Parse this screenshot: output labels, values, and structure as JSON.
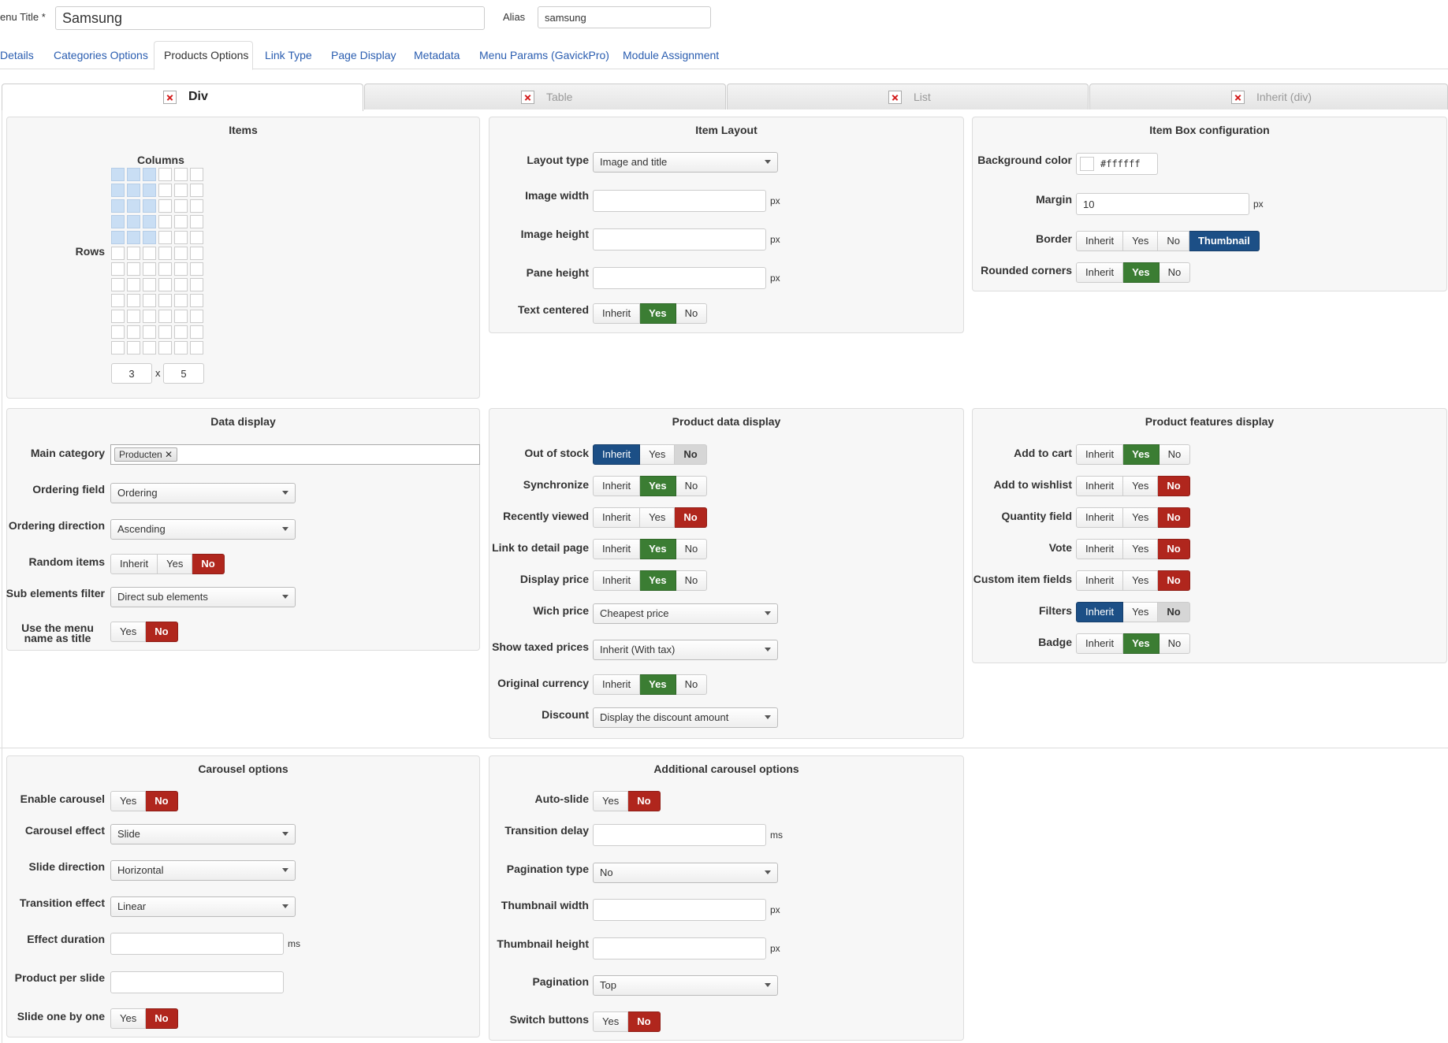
{
  "header": {
    "menu_title_label": "enu Title *",
    "menu_title_value": "Samsung",
    "alias_label": "Alias",
    "alias_value": "samsung"
  },
  "tabs": [
    "Details",
    "Categories Options",
    "Products Options",
    "Link Type",
    "Page Display",
    "Metadata",
    "Menu Params (GavickPro)",
    "Module Assignment"
  ],
  "subtabs": [
    "Div",
    "Table",
    "List",
    "Inherit (div)"
  ],
  "items": {
    "title": "Items",
    "columns_label": "Columns",
    "rows_label": "Rows",
    "columns": 3,
    "rows": 5,
    "columns_value": "3",
    "rows_value": "5",
    "x": "x"
  },
  "item_layout": {
    "title": "Item Layout",
    "layout_type_label": "Layout type",
    "layout_type_value": "Image and title",
    "image_width_label": "Image width",
    "image_height_label": "Image height",
    "pane_height_label": "Pane height",
    "text_centered_label": "Text centered",
    "px": "px"
  },
  "item_box": {
    "title": "Item Box configuration",
    "bg_color_label": "Background color",
    "bg_color_value": "#ffffff",
    "margin_label": "Margin",
    "margin_value": "10",
    "border_label": "Border",
    "rounded_label": "Rounded corners",
    "px": "px"
  },
  "data_display": {
    "title": "Data display",
    "main_category_label": "Main category",
    "main_category_chip": "Producten",
    "ordering_field_label": "Ordering field",
    "ordering_field_value": "Ordering",
    "ordering_direction_label": "Ordering direction",
    "ordering_direction_value": "Ascending",
    "random_items_label": "Random items",
    "sub_elements_label": "Sub elements filter",
    "sub_elements_value": "Direct sub elements",
    "menu_name_label": "Use the menu name as title"
  },
  "product_data": {
    "title": "Product data display",
    "out_of_stock_label": "Out of stock",
    "synchronize_label": "Synchronize",
    "recently_viewed_label": "Recently viewed",
    "link_detail_label": "Link to detail page",
    "display_price_label": "Display price",
    "wich_price_label": "Wich price",
    "wich_price_value": "Cheapest price",
    "show_taxed_label": "Show taxed prices",
    "show_taxed_value": "Inherit (With tax)",
    "original_currency_label": "Original currency",
    "discount_label": "Discount",
    "discount_value": "Display the discount amount"
  },
  "product_features": {
    "title": "Product features display",
    "add_to_cart_label": "Add to cart",
    "add_to_wishlist_label": "Add to wishlist",
    "quantity_field_label": "Quantity field",
    "vote_label": "Vote",
    "custom_fields_label": "Custom item fields",
    "filters_label": "Filters",
    "badge_label": "Badge"
  },
  "carousel": {
    "title": "Carousel options",
    "enable_label": "Enable carousel",
    "effect_label": "Carousel effect",
    "effect_value": "Slide",
    "direction_label": "Slide direction",
    "direction_value": "Horizontal",
    "transition_label": "Transition effect",
    "transition_value": "Linear",
    "duration_label": "Effect duration",
    "per_slide_label": "Product per slide",
    "one_by_one_label": "Slide one by one",
    "ms": "ms"
  },
  "additional_carousel": {
    "title": "Additional carousel options",
    "auto_slide_label": "Auto-slide",
    "transition_delay_label": "Transition delay",
    "pagination_type_label": "Pagination type",
    "pagination_type_value": "No",
    "thumb_width_label": "Thumbnail width",
    "thumb_height_label": "Thumbnail height",
    "pagination_label": "Pagination",
    "pagination_value": "Top",
    "switch_buttons_label": "Switch buttons",
    "ms": "ms",
    "px": "px"
  },
  "buttons": {
    "inherit": "Inherit",
    "yes": "Yes",
    "no": "No",
    "thumbnail": "Thumbnail"
  },
  "colors": {
    "yes_active": "#3b7d33",
    "no_active": "#b0261d",
    "inherit_active": "#1c4f86",
    "link": "#2a5db0"
  }
}
